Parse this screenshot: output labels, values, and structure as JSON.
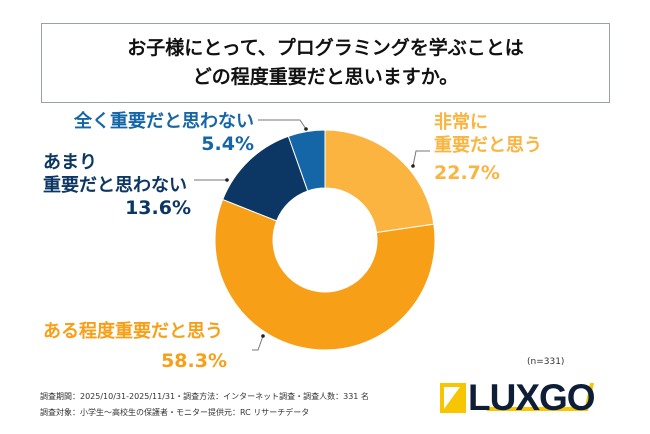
{
  "title": {
    "line1": "お子様にとって、プログラミングを学ぶことは",
    "line2": "どの程度重要だと思いますか。"
  },
  "chart_data": {
    "type": "pie",
    "donut": true,
    "title": "お子様にとって、プログラミングを学ぶことはどの程度重要だと思いますか。",
    "categories": [
      "非常に重要だと思う",
      "ある程度重要だと思う",
      "あまり重要だと思わない",
      "全く重要だと思わない"
    ],
    "values": [
      22.7,
      58.3,
      13.6,
      5.4
    ],
    "colors": [
      "#FBB440",
      "#F89F18",
      "#0C3764",
      "#1566A6"
    ],
    "labels": [
      {
        "lines": [
          "非常に",
          "重要だと思う"
        ],
        "pct": "22.7%"
      },
      {
        "lines": [
          "ある程度重要だと思う"
        ],
        "pct": "58.3%"
      },
      {
        "lines": [
          "あまり",
          "重要だと思わない"
        ],
        "pct": "13.6%"
      },
      {
        "lines": [
          "全く重要だと思わない"
        ],
        "pct": "5.4%"
      }
    ]
  },
  "sample": "(n=331)",
  "footer": {
    "line1": "調査期間：2025/10/31-2025/11/31・調査方法：インターネット調査・調査人数：331 名",
    "line2": "調査対象：小学生〜高校生の保護者・モニター提供元：RC リサーチデータ"
  },
  "logo": {
    "text": "LUXGO",
    "colors": [
      "#F7C600",
      "#0E1E36"
    ]
  }
}
